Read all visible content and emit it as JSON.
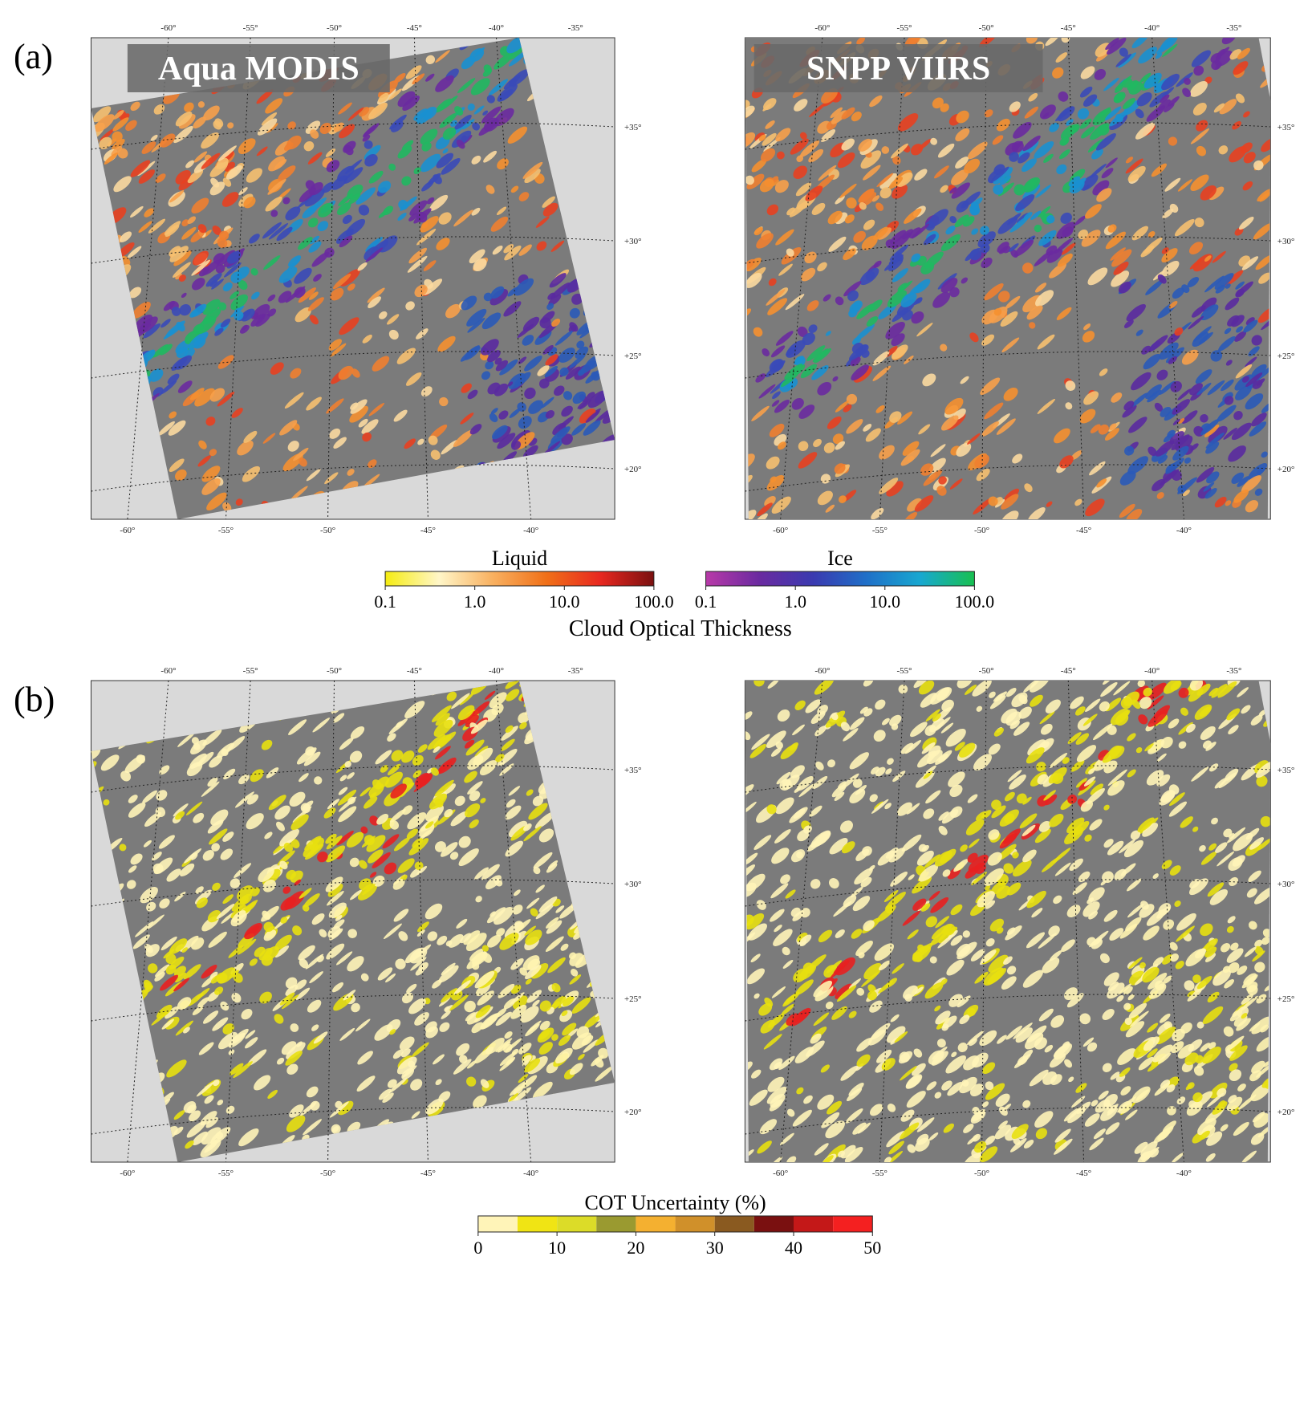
{
  "panels": [
    {
      "label": "(a)",
      "maps": [
        {
          "title": "Aqua MODIS",
          "top_lon_labels": [
            "-60°",
            "-55°",
            "-50°",
            "-45°",
            "-40°",
            "-35°"
          ],
          "bottom_lon_labels": [
            "-60°",
            "-55°",
            "-50°",
            "-45°",
            "-40°"
          ],
          "lat_labels": [
            "+35°",
            "+30°",
            "+25°",
            "+20°"
          ]
        },
        {
          "title": "SNPP VIIRS",
          "top_lon_labels": [
            "-60°",
            "-55°",
            "-50°",
            "-45°",
            "-40°",
            "-35°"
          ],
          "bottom_lon_labels": [
            "-60°",
            "-55°",
            "-50°",
            "-45°",
            "-40°"
          ],
          "lat_labels": [
            "+35°",
            "+30°",
            "+25°",
            "+20°"
          ]
        }
      ],
      "colorbars": [
        {
          "title": "Liquid",
          "log": true,
          "lim": [
            0.1,
            100
          ],
          "colors": [
            "#f5ec10",
            "#fff6c8",
            "#f8b060",
            "#f07018",
            "#e82820",
            "#7a1010"
          ],
          "ticks": [
            {
              "value": 0.1,
              "label": "0.1"
            },
            {
              "value": 1,
              "label": "1.0"
            },
            {
              "value": 10,
              "label": "10.0"
            },
            {
              "value": 100,
              "label": "100.0"
            }
          ]
        },
        {
          "title": "Ice",
          "log": true,
          "lim": [
            0.1,
            100
          ],
          "colors": [
            "#b83aa8",
            "#6a2aa0",
            "#3a3ab0",
            "#1f70c8",
            "#18a8d0",
            "#18c050"
          ],
          "ticks": [
            {
              "value": 0.1,
              "label": "0.1"
            },
            {
              "value": 1,
              "label": "1.0"
            },
            {
              "value": 10,
              "label": "10.0"
            },
            {
              "value": 100,
              "label": "100.0"
            }
          ]
        }
      ],
      "caption": "Cloud Optical Thickness"
    },
    {
      "label": "(b)",
      "maps": [
        {
          "top_lon_labels": [
            "-60°",
            "-55°",
            "-50°",
            "-45°",
            "-40°",
            "-35°"
          ],
          "bottom_lon_labels": [
            "-60°",
            "-55°",
            "-50°",
            "-45°",
            "-40°"
          ],
          "lat_labels": [
            "+35°",
            "+30°",
            "+25°",
            "+20°"
          ]
        },
        {
          "top_lon_labels": [
            "-60°",
            "-55°",
            "-50°",
            "-45°",
            "-40°",
            "-35°"
          ],
          "bottom_lon_labels": [
            "-60°",
            "-55°",
            "-50°",
            "-45°",
            "-40°"
          ],
          "lat_labels": [
            "+35°",
            "+30°",
            "+25°",
            "+20°"
          ]
        }
      ],
      "colorbars": [
        {
          "title": "COT Uncertainty (%)",
          "log": false,
          "lim": [
            0,
            50
          ],
          "colors": [
            "#fff4b8",
            "#f0e414",
            "#dcdc28",
            "#9a9a30",
            "#f4b030",
            "#d0902a",
            "#8a5a20",
            "#7a1010",
            "#c41818",
            "#f42020"
          ],
          "ticks": [
            0,
            10,
            20,
            30,
            40,
            50
          ]
        }
      ]
    }
  ]
}
